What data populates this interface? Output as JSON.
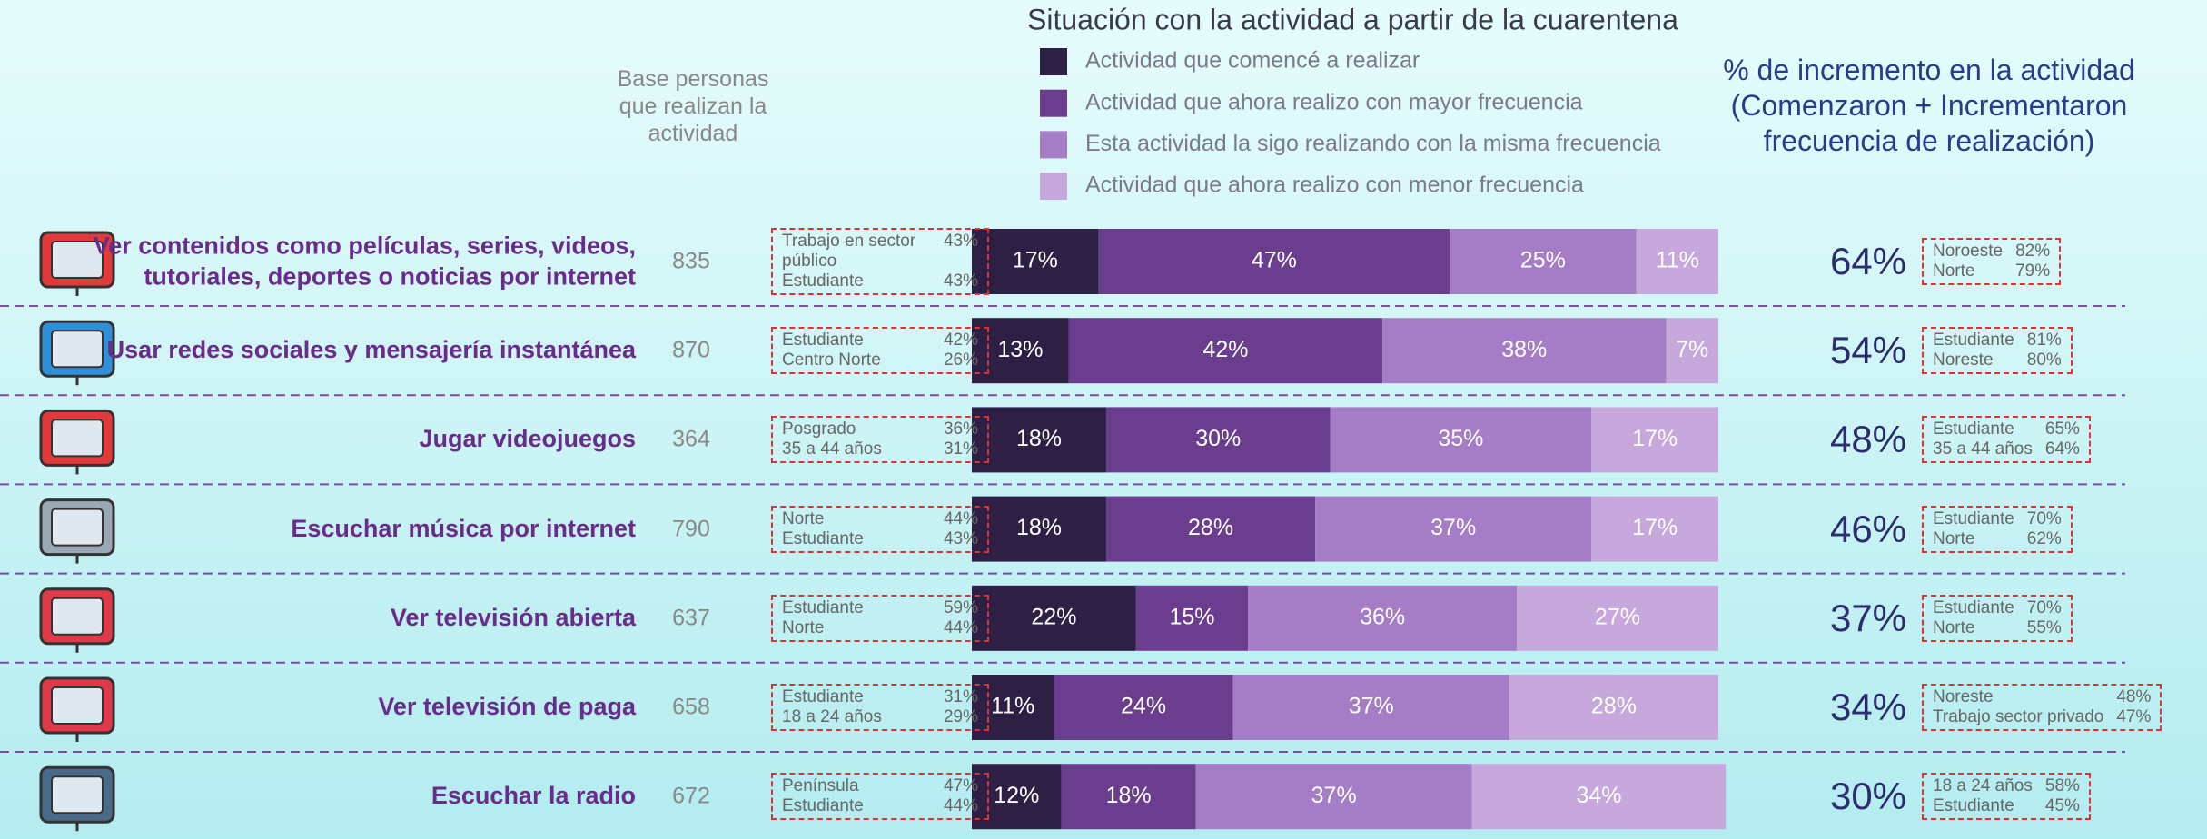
{
  "chart_data": {
    "type": "bar",
    "orientation": "horizontal",
    "stacked": true,
    "title": "Situación con la actividad a partir de la cuarentena",
    "categories": [
      "Ver contenidos como películas, series, videos,\ntutoriales, deportes o noticias por internet",
      "Usar redes sociales y mensajería instantánea",
      "Jugar videojuegos",
      "Escuchar música por internet",
      "Ver televisión abierta",
      "Ver televisión de paga",
      "Escuchar la radio"
    ],
    "series": [
      {
        "name": "Actividad que comencé a realizar",
        "color": "#2e1f45",
        "values": [
          17,
          13,
          18,
          18,
          22,
          11,
          12
        ],
        "value_labels": [
          "17%",
          "13%",
          "18%",
          "18%",
          "22%",
          "11%",
          "12%"
        ]
      },
      {
        "name": "Actividad que ahora realizo con mayor frecuencia",
        "color": "#6a3d8f",
        "values": [
          47,
          42,
          30,
          28,
          15,
          24,
          18
        ],
        "value_labels": [
          "47%",
          "42%",
          "30%",
          "28%",
          "15%",
          "24%",
          "18%"
        ]
      },
      {
        "name": "Esta actividad la sigo realizando con la misma frecuencia",
        "color": "#a57cc6",
        "values": [
          25,
          38,
          35,
          37,
          36,
          37,
          37
        ],
        "value_labels": [
          "25%",
          "38%",
          "35%",
          "37%",
          "36%",
          "37%",
          "37%"
        ]
      },
      {
        "name": "Actividad que ahora realizo con menor frecuencia",
        "color": "#c7a8dc",
        "values": [
          11,
          7,
          17,
          17,
          27,
          28,
          34
        ],
        "value_labels": [
          "11%",
          "7%",
          "17%",
          "17%",
          "27%",
          "28%",
          "34%"
        ]
      }
    ],
    "xlim": [
      0,
      100
    ]
  },
  "base_header": "Base personas que realizan la actividad",
  "increase_header": "% de incremento en la actividad (Comenzaron + Incrementaron frecuencia de realización)",
  "rows": [
    {
      "base": 835,
      "increase": "64%",
      "left": [
        [
          "Trabajo en sector público",
          "43%"
        ],
        [
          "Estudiante",
          "43%"
        ]
      ],
      "right": [
        [
          "Noroeste",
          "82%"
        ],
        [
          "Norte",
          "79%"
        ]
      ]
    },
    {
      "base": 870,
      "increase": "54%",
      "left": [
        [
          "Estudiante",
          "42%"
        ],
        [
          "Centro Norte",
          "26%"
        ]
      ],
      "right": [
        [
          "Estudiante",
          "81%"
        ],
        [
          "Noreste",
          "80%"
        ]
      ]
    },
    {
      "base": 364,
      "increase": "48%",
      "left": [
        [
          "Posgrado",
          "36%"
        ],
        [
          "35 a 44 años",
          "31%"
        ]
      ],
      "right": [
        [
          "Estudiante",
          "65%"
        ],
        [
          "35 a 44 años",
          "64%"
        ]
      ]
    },
    {
      "base": 790,
      "increase": "46%",
      "left": [
        [
          "Norte",
          "44%"
        ],
        [
          "Estudiante",
          "43%"
        ]
      ],
      "right": [
        [
          "Estudiante",
          "70%"
        ],
        [
          "Norte",
          "62%"
        ]
      ]
    },
    {
      "base": 637,
      "increase": "37%",
      "left": [
        [
          "Estudiante",
          "59%"
        ],
        [
          "Norte",
          "44%"
        ]
      ],
      "right": [
        [
          "Estudiante",
          "70%"
        ],
        [
          "Norte",
          "55%"
        ]
      ]
    },
    {
      "base": 658,
      "increase": "34%",
      "left": [
        [
          "Estudiante",
          "31%"
        ],
        [
          "18 a 24 años",
          "29%"
        ]
      ],
      "right": [
        [
          "Noreste",
          "48%"
        ],
        [
          "Trabajo sector privado",
          "47%"
        ]
      ]
    },
    {
      "base": 672,
      "increase": "30%",
      "left": [
        [
          "Península",
          "47%"
        ],
        [
          "Estudiante",
          "44%"
        ]
      ],
      "right": [
        [
          "18 a 24 años",
          "58%"
        ],
        [
          "Estudiante",
          "45%"
        ]
      ]
    }
  ]
}
